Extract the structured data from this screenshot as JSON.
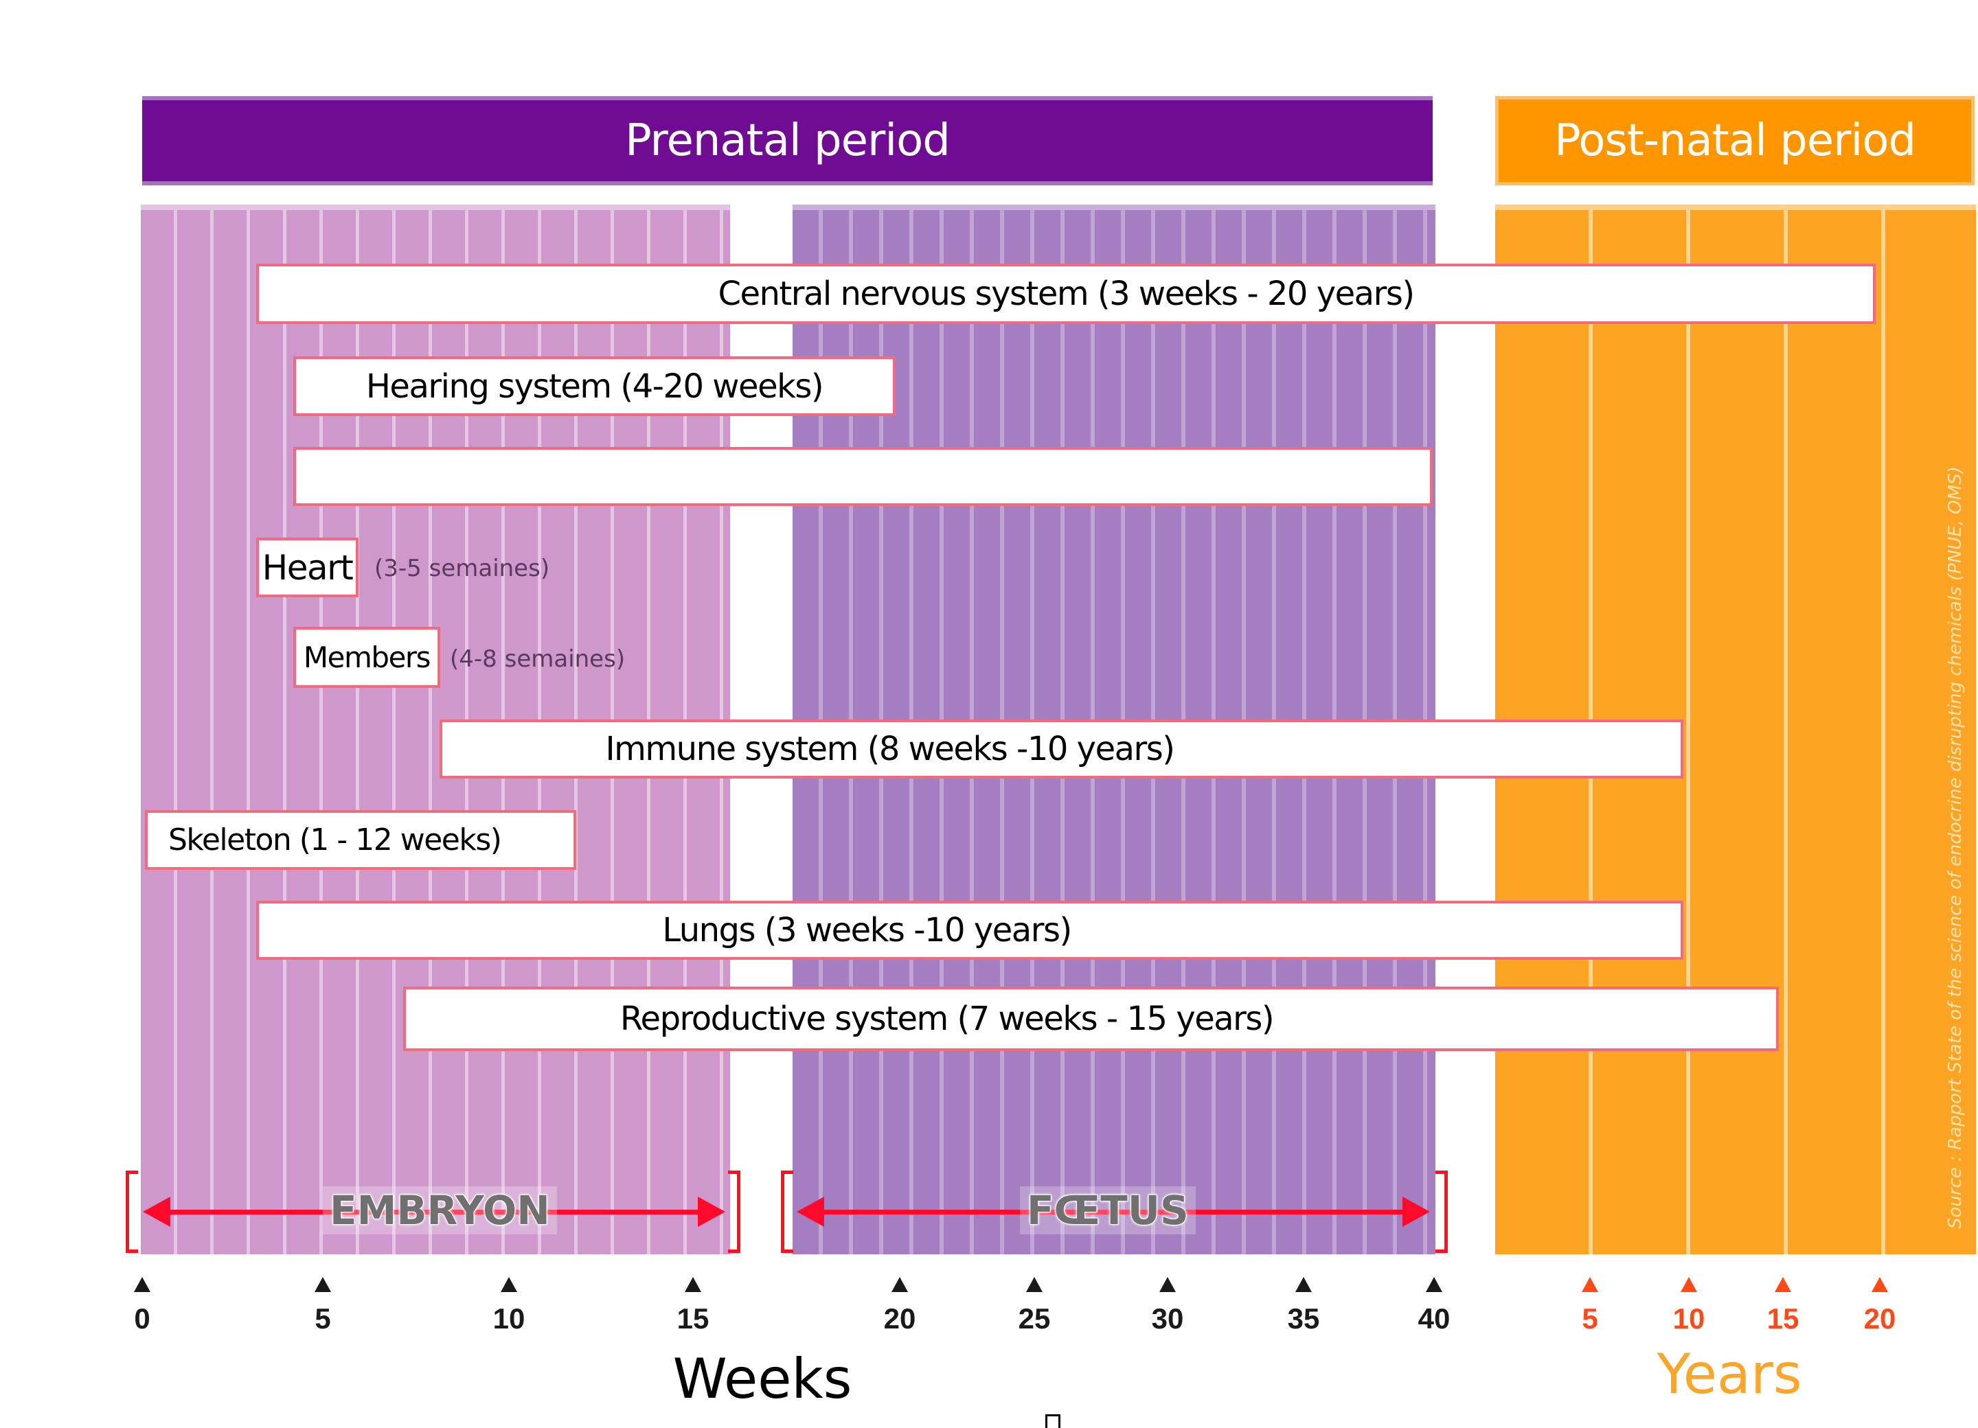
{
  "banners": {
    "prenatal": "Prenatal period",
    "postnatal": "Post-natal period"
  },
  "colors": {
    "prenatal_banner": "#6f0c93",
    "postnatal_banner": "#ff9600",
    "embryon_panel": "#cf98cc",
    "foetus_panel": "#a57dc1",
    "postnatal_panel": "#fea424",
    "bar_border": "#f26a7d",
    "arrow": "#ff0a2a",
    "year_tick": "#ff4a18",
    "years_title": "#fba52a"
  },
  "stages": {
    "embryon": "EMBRYON",
    "foetus": "FŒTUS"
  },
  "bars": {
    "cns": "Central nervous system (3 weeks - 20 years)",
    "hearing": "Hearing system (4-20 weeks)",
    "empty": "",
    "heart": "Heart",
    "heart_note": "(3-5 semaines)",
    "members": "Members",
    "members_note": "(4-8 semaines)",
    "immune": "Immune system (8 weeks -10 years)",
    "skeleton": "Skeleton (1 - 12 weeks)",
    "lungs": "Lungs (3 weeks -10 years)",
    "reproductive": "Reproductive system (7 weeks - 15 years)"
  },
  "axis": {
    "weeks_title": "Weeks",
    "years_title": "Years",
    "week_ticks": [
      "0",
      "5",
      "10",
      "15",
      "20",
      "25",
      "30",
      "35",
      "40"
    ],
    "year_ticks": [
      "5",
      "10",
      "15",
      "20"
    ]
  },
  "source": "Source : Rapport State of the science of endocrine disrupting chemicals (PNUE, OMS)",
  "chart_data": {
    "type": "gantt",
    "title": "",
    "periods": [
      {
        "name": "Prenatal period",
        "unit": "weeks",
        "range": [
          0,
          40
        ]
      },
      {
        "name": "Post-natal period",
        "unit": "years",
        "range": [
          0,
          20
        ]
      }
    ],
    "stages": [
      {
        "name": "EMBRYON",
        "start_week": 0,
        "end_week": 16
      },
      {
        "name": "FŒTUS",
        "start_week": 17,
        "end_week": 40
      }
    ],
    "series": [
      {
        "name": "Central nervous system",
        "start": "3 weeks",
        "end": "20 years"
      },
      {
        "name": "Hearing system",
        "start": "4 weeks",
        "end": "20 weeks"
      },
      {
        "name": "(unlabeled)",
        "start": "4 weeks",
        "end": "40 weeks"
      },
      {
        "name": "Heart",
        "start": "3 weeks",
        "end": "5 weeks"
      },
      {
        "name": "Members",
        "start": "4 weeks",
        "end": "8 weeks"
      },
      {
        "name": "Immune system",
        "start": "8 weeks",
        "end": "10 years"
      },
      {
        "name": "Skeleton",
        "start": "1 week",
        "end": "12 weeks"
      },
      {
        "name": "Lungs",
        "start": "3 weeks",
        "end": "10 years"
      },
      {
        "name": "Reproductive system",
        "start": "7 weeks",
        "end": "15 years"
      }
    ],
    "xlabel_weeks": "Weeks",
    "xlabel_years": "Years",
    "week_ticks": [
      0,
      5,
      10,
      15,
      20,
      25,
      30,
      35,
      40
    ],
    "year_ticks": [
      5,
      10,
      15,
      20
    ]
  }
}
